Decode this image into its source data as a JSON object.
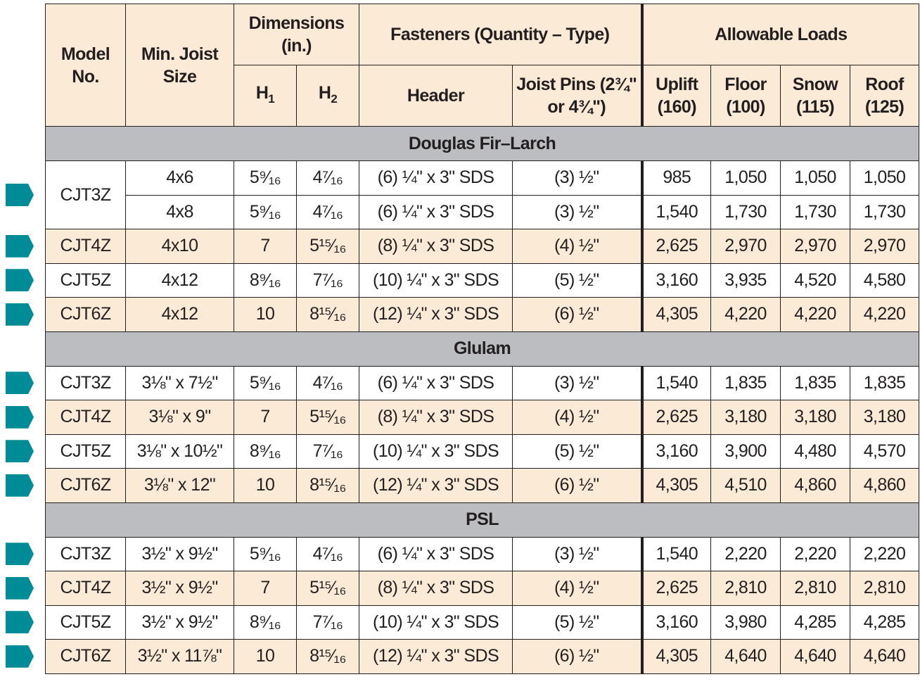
{
  "header": {
    "model": "Model No.",
    "joist": "Min. Joist Size",
    "dimensions": "Dimensions (in.)",
    "h1": "H",
    "h1_sub": "1",
    "h2": "H",
    "h2_sub": "2",
    "fasteners": "Fasteners (Quantity – Type)",
    "header_col": "Header",
    "pins": "Joist Pins (2¾\" or 4¾\")",
    "loads": "Allowable Loads",
    "uplift": "Uplift (160)",
    "floor": "Floor (100)",
    "snow": "Snow (115)",
    "roof": "Roof (125)"
  },
  "colors": {
    "header_bg": "#fbebd6",
    "section_bg": "#bcbdc1",
    "arrow": "#008c96"
  },
  "sections": [
    {
      "name": "Douglas Fir–Larch",
      "rows": [
        {
          "model": "CJT3Z",
          "span": 2,
          "joist": "4x6",
          "h1": "5⁹⁄₁₆",
          "h2": "4⁷⁄₁₆",
          "header": "(6) ¼\" x 3\" SDS",
          "pins": "(3) ½\"",
          "loads": [
            "985",
            "1,050",
            "1,050",
            "1,050"
          ],
          "bg": "white"
        },
        {
          "model": null,
          "joist": "4x8",
          "h1": "5⁹⁄₁₆",
          "h2": "4⁷⁄₁₆",
          "header": "(6) ¼\" x 3\" SDS",
          "pins": "(3) ½\"",
          "loads": [
            "1,540",
            "1,730",
            "1,730",
            "1,730"
          ],
          "bg": "white"
        },
        {
          "model": "CJT4Z",
          "joist": "4x10",
          "h1": "7",
          "h2": "5¹⁵⁄₁₆",
          "header": "(8) ¼\" x 3\" SDS",
          "pins": "(4) ½\"",
          "loads": [
            "2,625",
            "2,970",
            "2,970",
            "2,970"
          ],
          "bg": "beige"
        },
        {
          "model": "CJT5Z",
          "joist": "4x12",
          "h1": "8⁹⁄₁₆",
          "h2": "7⁷⁄₁₆",
          "header": "(10) ¼\" x 3\" SDS",
          "pins": "(5) ½\"",
          "loads": [
            "3,160",
            "3,935",
            "4,520",
            "4,580"
          ],
          "bg": "white"
        },
        {
          "model": "CJT6Z",
          "joist": "4x12",
          "h1": "10",
          "h2": "8¹⁵⁄₁₆",
          "header": "(12) ¼\" x 3\" SDS",
          "pins": "(6) ½\"",
          "loads": [
            "4,305",
            "4,220",
            "4,220",
            "4,220"
          ],
          "bg": "beige"
        }
      ]
    },
    {
      "name": "Glulam",
      "rows": [
        {
          "model": "CJT3Z",
          "joist": "3⅛\" x 7½\"",
          "h1": "5⁹⁄₁₆",
          "h2": "4⁷⁄₁₆",
          "header": "(6) ¼\" x 3\" SDS",
          "pins": "(3) ½\"",
          "loads": [
            "1,540",
            "1,835",
            "1,835",
            "1,835"
          ],
          "bg": "white"
        },
        {
          "model": "CJT4Z",
          "joist": "3⅛\" x 9\"",
          "h1": "7",
          "h2": "5¹⁵⁄₁₆",
          "header": "(8) ¼\" x 3\" SDS",
          "pins": "(4) ½\"",
          "loads": [
            "2,625",
            "3,180",
            "3,180",
            "3,180"
          ],
          "bg": "beige"
        },
        {
          "model": "CJT5Z",
          "joist": "3⅛\" x 10½\"",
          "h1": "8⁹⁄₁₆",
          "h2": "7⁷⁄₁₆",
          "header": "(10) ¼\" x 3\" SDS",
          "pins": "(5) ½\"",
          "loads": [
            "3,160",
            "3,900",
            "4,480",
            "4,570"
          ],
          "bg": "white"
        },
        {
          "model": "CJT6Z",
          "joist": "3⅛\" x 12\"",
          "h1": "10",
          "h2": "8¹⁵⁄₁₆",
          "header": "(12) ¼\" x 3\" SDS",
          "pins": "(6) ½\"",
          "loads": [
            "4,305",
            "4,510",
            "4,860",
            "4,860"
          ],
          "bg": "beige"
        }
      ]
    },
    {
      "name": "PSL",
      "rows": [
        {
          "model": "CJT3Z",
          "joist": "3½\" x 9½\"",
          "h1": "5⁹⁄₁₆",
          "h2": "4⁷⁄₁₆",
          "header": "(6) ¼\" x 3\" SDS",
          "pins": "(3) ½\"",
          "loads": [
            "1,540",
            "2,220",
            "2,220",
            "2,220"
          ],
          "bg": "white"
        },
        {
          "model": "CJT4Z",
          "joist": "3½\" x 9½\"",
          "h1": "7",
          "h2": "5¹⁵⁄₁₆",
          "header": "(8) ¼\" x 3\" SDS",
          "pins": "(4) ½\"",
          "loads": [
            "2,625",
            "2,810",
            "2,810",
            "2,810"
          ],
          "bg": "beige"
        },
        {
          "model": "CJT5Z",
          "joist": "3½\" x 9½\"",
          "h1": "8⁹⁄₁₆",
          "h2": "7⁷⁄₁₆",
          "header": "(10) ¼\" x 3\" SDS",
          "pins": "(5) ½\"",
          "loads": [
            "3,160",
            "3,980",
            "4,285",
            "4,285"
          ],
          "bg": "white"
        },
        {
          "model": "CJT6Z",
          "joist": "3½\" x 11⅞\"",
          "h1": "10",
          "h2": "8¹⁵⁄₁₆",
          "header": "(12) ¼\" x 3\" SDS",
          "pins": "(6) ½\"",
          "loads": [
            "4,305",
            "4,640",
            "4,640",
            "4,640"
          ],
          "bg": "beige"
        }
      ]
    }
  ]
}
